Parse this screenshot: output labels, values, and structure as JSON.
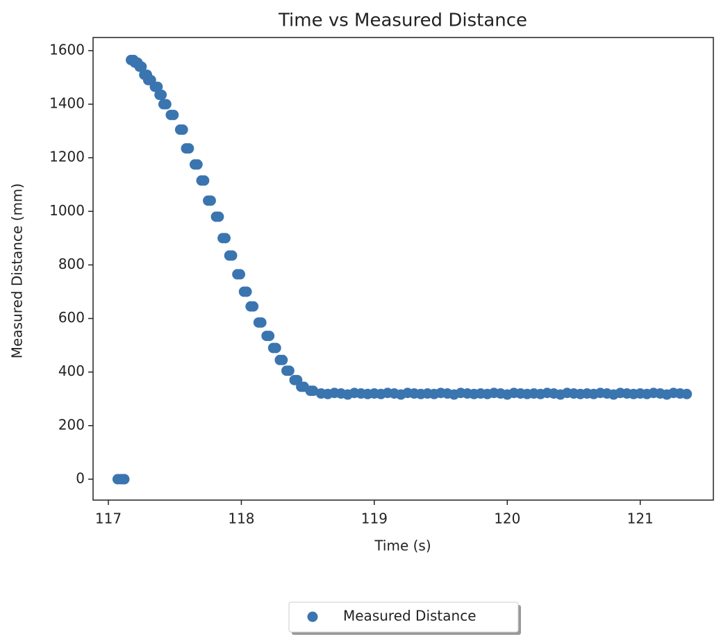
{
  "chart_data": {
    "type": "scatter",
    "title": "Time vs Measured Distance",
    "x_label": "Time (s)",
    "y_label": "Measured Distance (mm)",
    "x": [
      117.07,
      117.09,
      117.11,
      117.12,
      117.17,
      117.19,
      117.2,
      117.22,
      117.235,
      117.25,
      117.27,
      117.29,
      117.3,
      117.32,
      117.35,
      117.37,
      117.385,
      117.4,
      117.415,
      117.435,
      117.47,
      117.49,
      117.54,
      117.56,
      117.585,
      117.605,
      117.65,
      117.67,
      117.7,
      117.72,
      117.75,
      117.77,
      117.81,
      117.83,
      117.86,
      117.88,
      117.91,
      117.93,
      117.97,
      117.99,
      118.02,
      118.04,
      118.07,
      118.09,
      118.13,
      118.15,
      118.19,
      118.21,
      118.24,
      118.26,
      118.29,
      118.31,
      118.34,
      118.36,
      118.4,
      118.42,
      118.45,
      118.47,
      118.52,
      118.54,
      118.6,
      118.65,
      118.7,
      118.75,
      118.8,
      118.85,
      118.9,
      118.95,
      119,
      119.05,
      119.1,
      119.15,
      119.2,
      119.25,
      119.3,
      119.35,
      119.4,
      119.45,
      119.5,
      119.55,
      119.6,
      119.65,
      119.7,
      119.75,
      119.8,
      119.85,
      119.9,
      119.95,
      120,
      120.05,
      120.1,
      120.15,
      120.2,
      120.25,
      120.3,
      120.35,
      120.4,
      120.45,
      120.5,
      120.55,
      120.6,
      120.65,
      120.7,
      120.75,
      120.8,
      120.85,
      120.9,
      120.95,
      121,
      121.05,
      121.1,
      121.15,
      121.2,
      121.25,
      121.3,
      121.35
    ],
    "series": [
      {
        "name": "Measured Distance",
        "color": "#3a75b0",
        "values": [
          0,
          0,
          0,
          0,
          1565,
          1565,
          1555,
          1555,
          1540,
          1540,
          1510,
          1510,
          1490,
          1490,
          1465,
          1465,
          1435,
          1435,
          1400,
          1400,
          1360,
          1360,
          1305,
          1305,
          1235,
          1235,
          1175,
          1175,
          1115,
          1115,
          1040,
          1040,
          980,
          980,
          900,
          900,
          835,
          835,
          765,
          765,
          700,
          700,
          645,
          645,
          585,
          585,
          535,
          535,
          490,
          490,
          445,
          445,
          405,
          405,
          370,
          370,
          345,
          345,
          330,
          330,
          320,
          318,
          322,
          320,
          316,
          322,
          320,
          318,
          320,
          318,
          322,
          320,
          316,
          322,
          320,
          318,
          320,
          318,
          322,
          320,
          316,
          322,
          320,
          318,
          320,
          318,
          322,
          320,
          316,
          322,
          320,
          318,
          320,
          318,
          322,
          320,
          316,
          322,
          320,
          318,
          320,
          318,
          322,
          320,
          316,
          322,
          320,
          318,
          320,
          318,
          322,
          320,
          316,
          322,
          320,
          318
        ]
      }
    ],
    "xlim": [
      116.885,
      121.55
    ],
    "ylim": [
      -78,
      1649
    ],
    "xticks": [
      117,
      118,
      119,
      120,
      121
    ],
    "yticks": [
      0,
      200,
      400,
      600,
      800,
      1000,
      1200,
      1400,
      1600
    ],
    "legend": "lower center"
  }
}
